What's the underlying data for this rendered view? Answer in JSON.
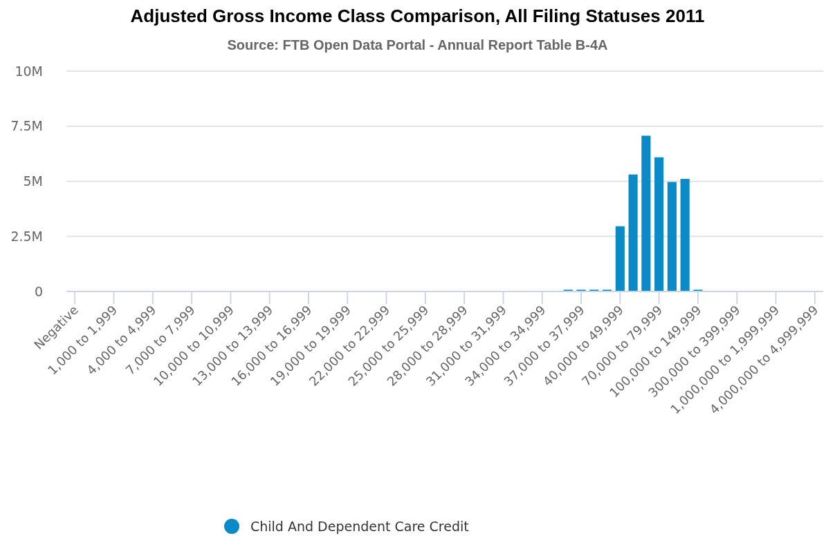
{
  "chart_data": {
    "type": "bar",
    "title": "Adjusted Gross Income Class Comparison, All Filing Statuses 2011",
    "subtitle": "Source: FTB Open Data Portal - Annual Report Table B-4A",
    "categories": [
      "Negative",
      null,
      null,
      "1,000 to 1,999",
      null,
      null,
      "4,000 to 4,999",
      null,
      null,
      "7,000 to 7,999",
      null,
      null,
      "10,000 to 10,999",
      null,
      null,
      "13,000 to 13,999",
      null,
      null,
      "16,000 to 16,999",
      null,
      null,
      "19,000 to 19,999",
      null,
      null,
      "22,000 to 22,999",
      null,
      null,
      "25,000 to 25,999",
      null,
      null,
      "28,000 to 28,999",
      null,
      null,
      "31,000 to 31,999",
      null,
      null,
      "34,000 to 34,999",
      null,
      null,
      "37,000 to 37,999",
      null,
      null,
      "40,000 to 49,999",
      null,
      null,
      "70,000 to 79,999",
      null,
      null,
      "100,000 to 149,999",
      null,
      null,
      "300,000 to 399,999",
      null,
      null,
      "1,000,000 to 1,999,999",
      null,
      null,
      "4,000,000 to 4,999,999"
    ],
    "series": [
      {
        "name": "Child And Dependent Care Credit",
        "color": "#0a8ac6",
        "values": [
          0,
          0,
          0,
          0,
          0,
          0,
          0,
          0,
          0,
          0,
          0,
          0,
          0,
          0,
          0,
          0,
          0,
          0,
          0,
          0,
          0,
          0,
          0,
          0,
          0,
          0,
          0,
          0,
          0,
          0,
          0,
          0,
          0,
          0,
          0,
          0,
          0,
          0,
          80000,
          80000,
          80000,
          80000,
          2960000,
          5310000,
          7070000,
          6090000,
          4970000,
          5110000,
          80000,
          0,
          0,
          0,
          0,
          0,
          0,
          0,
          0,
          0
        ]
      }
    ],
    "ylim": [
      0,
      10000000
    ],
    "yticks": [
      {
        "value": 0,
        "label": "0"
      },
      {
        "value": 2500000,
        "label": "2.5M"
      },
      {
        "value": 5000000,
        "label": "5M"
      },
      {
        "value": 7500000,
        "label": "7.5M"
      },
      {
        "value": 10000000,
        "label": "10M"
      }
    ],
    "grid": "y",
    "legend": "bottom"
  }
}
